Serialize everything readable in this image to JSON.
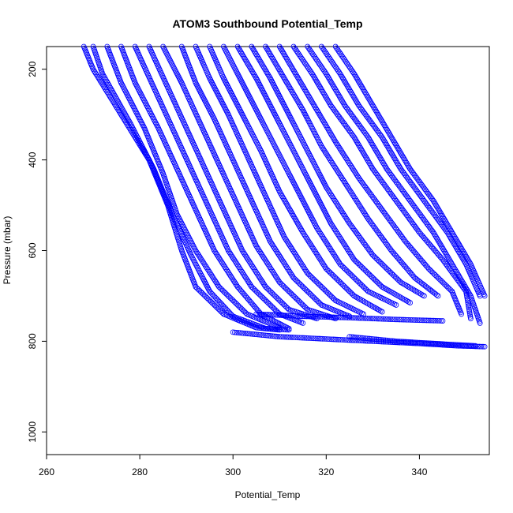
{
  "chart_data": {
    "type": "scatter",
    "title": "ATOM3 Southbound Potential_Temp",
    "xlabel": "Potential_Temp",
    "ylabel": "Pressure (mbar)",
    "xlim": [
      260,
      355
    ],
    "ylim": [
      150,
      1050
    ],
    "y_reversed": true,
    "x_ticks": [
      260,
      280,
      300,
      320,
      340
    ],
    "y_ticks": [
      200,
      400,
      600,
      800,
      1000
    ],
    "marker": "open-circle",
    "color": "#0000ff",
    "grid": false,
    "legend": "none",
    "series": [
      {
        "points": [
          [
            268,
            150
          ],
          [
            270,
            200
          ],
          [
            276,
            300
          ],
          [
            282,
            400
          ],
          [
            286,
            500
          ],
          [
            289,
            600
          ],
          [
            292,
            680
          ],
          [
            298,
            740
          ],
          [
            305,
            770
          ],
          [
            310,
            775
          ]
        ]
      },
      {
        "points": [
          [
            270,
            150
          ],
          [
            272,
            210
          ],
          [
            278,
            320
          ],
          [
            283,
            420
          ],
          [
            287,
            520
          ],
          [
            291,
            610
          ],
          [
            295,
            690
          ],
          [
            300,
            745
          ],
          [
            307,
            772
          ],
          [
            312,
            775
          ]
        ]
      },
      {
        "points": [
          [
            273,
            150
          ],
          [
            276,
            230
          ],
          [
            281,
            330
          ],
          [
            285,
            430
          ],
          [
            288,
            520
          ],
          [
            292,
            600
          ],
          [
            297,
            680
          ],
          [
            303,
            740
          ],
          [
            310,
            770
          ]
        ]
      },
      {
        "points": [
          [
            276,
            150
          ],
          [
            279,
            230
          ],
          [
            284,
            330
          ],
          [
            288,
            420
          ],
          [
            292,
            510
          ],
          [
            296,
            600
          ],
          [
            301,
            680
          ],
          [
            306,
            740
          ],
          [
            312,
            772
          ]
        ]
      },
      {
        "points": [
          [
            279,
            150
          ],
          [
            283,
            240
          ],
          [
            287,
            330
          ],
          [
            291,
            420
          ],
          [
            295,
            510
          ],
          [
            299,
            600
          ],
          [
            304,
            680
          ],
          [
            310,
            740
          ],
          [
            315,
            760
          ]
        ]
      },
      {
        "points": [
          [
            282,
            150
          ],
          [
            286,
            240
          ],
          [
            290,
            330
          ],
          [
            294,
            420
          ],
          [
            298,
            510
          ],
          [
            302,
            600
          ],
          [
            307,
            680
          ],
          [
            312,
            730
          ],
          [
            318,
            750
          ]
        ]
      },
      {
        "points": [
          [
            285,
            150
          ],
          [
            289,
            230
          ],
          [
            293,
            320
          ],
          [
            297,
            410
          ],
          [
            301,
            500
          ],
          [
            305,
            590
          ],
          [
            310,
            670
          ],
          [
            316,
            730
          ],
          [
            322,
            750
          ]
        ]
      },
      {
        "points": [
          [
            289,
            150
          ],
          [
            292,
            230
          ],
          [
            296,
            310
          ],
          [
            300,
            400
          ],
          [
            304,
            490
          ],
          [
            308,
            580
          ],
          [
            313,
            660
          ],
          [
            319,
            720
          ],
          [
            325,
            745
          ]
        ]
      },
      {
        "points": [
          [
            292,
            150
          ],
          [
            295,
            220
          ],
          [
            299,
            300
          ],
          [
            303,
            390
          ],
          [
            307,
            480
          ],
          [
            311,
            570
          ],
          [
            316,
            650
          ],
          [
            322,
            710
          ],
          [
            328,
            740
          ]
        ]
      },
      {
        "points": [
          [
            295,
            150
          ],
          [
            298,
            220
          ],
          [
            302,
            300
          ],
          [
            306,
            380
          ],
          [
            310,
            470
          ],
          [
            315,
            560
          ],
          [
            320,
            640
          ],
          [
            326,
            700
          ],
          [
            332,
            735
          ]
        ]
      },
      {
        "points": [
          [
            298,
            150
          ],
          [
            302,
            230
          ],
          [
            306,
            310
          ],
          [
            310,
            390
          ],
          [
            314,
            470
          ],
          [
            318,
            550
          ],
          [
            323,
            630
          ],
          [
            329,
            690
          ],
          [
            335,
            720
          ]
        ]
      },
      {
        "points": [
          [
            301,
            150
          ],
          [
            305,
            220
          ],
          [
            309,
            300
          ],
          [
            313,
            380
          ],
          [
            317,
            460
          ],
          [
            321,
            540
          ],
          [
            326,
            620
          ],
          [
            332,
            680
          ],
          [
            338,
            715
          ]
        ]
      },
      {
        "points": [
          [
            304,
            150
          ],
          [
            308,
            220
          ],
          [
            312,
            300
          ],
          [
            316,
            380
          ],
          [
            320,
            460
          ],
          [
            325,
            540
          ],
          [
            330,
            610
          ],
          [
            336,
            670
          ],
          [
            341,
            700
          ]
        ]
      },
      {
        "points": [
          [
            307,
            150
          ],
          [
            311,
            220
          ],
          [
            315,
            290
          ],
          [
            319,
            370
          ],
          [
            324,
            450
          ],
          [
            329,
            530
          ],
          [
            334,
            600
          ],
          [
            339,
            660
          ],
          [
            344,
            700
          ]
        ]
      },
      {
        "points": [
          [
            310,
            150
          ],
          [
            314,
            220
          ],
          [
            318,
            290
          ],
          [
            322,
            360
          ],
          [
            327,
            440
          ],
          [
            332,
            510
          ],
          [
            337,
            580
          ],
          [
            342,
            640
          ],
          [
            347,
            690
          ],
          [
            349,
            740
          ]
        ]
      },
      {
        "points": [
          [
            313,
            150
          ],
          [
            317,
            210
          ],
          [
            321,
            280
          ],
          [
            326,
            350
          ],
          [
            330,
            420
          ],
          [
            335,
            490
          ],
          [
            340,
            560
          ],
          [
            345,
            620
          ],
          [
            350,
            690
          ],
          [
            351,
            750
          ]
        ]
      },
      {
        "points": [
          [
            316,
            150
          ],
          [
            320,
            210
          ],
          [
            324,
            280
          ],
          [
            329,
            350
          ],
          [
            333,
            420
          ],
          [
            338,
            490
          ],
          [
            343,
            560
          ],
          [
            347,
            630
          ],
          [
            351,
            700
          ],
          [
            353,
            760
          ]
        ]
      },
      {
        "points": [
          [
            319,
            150
          ],
          [
            323,
            210
          ],
          [
            327,
            280
          ],
          [
            332,
            350
          ],
          [
            336,
            420
          ],
          [
            341,
            490
          ],
          [
            346,
            560
          ],
          [
            350,
            630
          ],
          [
            353,
            700
          ]
        ]
      },
      {
        "points": [
          [
            322,
            150
          ],
          [
            326,
            210
          ],
          [
            330,
            280
          ],
          [
            334,
            350
          ],
          [
            338,
            420
          ],
          [
            343,
            490
          ],
          [
            347,
            560
          ],
          [
            351,
            630
          ],
          [
            354,
            700
          ]
        ]
      },
      {
        "points": [
          [
            300,
            780
          ],
          [
            310,
            790
          ],
          [
            320,
            795
          ],
          [
            330,
            800
          ],
          [
            340,
            805
          ],
          [
            348,
            810
          ],
          [
            354,
            812
          ]
        ]
      },
      {
        "points": [
          [
            325,
            790
          ],
          [
            335,
            800
          ],
          [
            345,
            806
          ],
          [
            352,
            810
          ]
        ]
      },
      {
        "points": [
          [
            305,
            740
          ],
          [
            315,
            745
          ],
          [
            325,
            748
          ],
          [
            335,
            752
          ],
          [
            345,
            755
          ]
        ]
      }
    ]
  }
}
